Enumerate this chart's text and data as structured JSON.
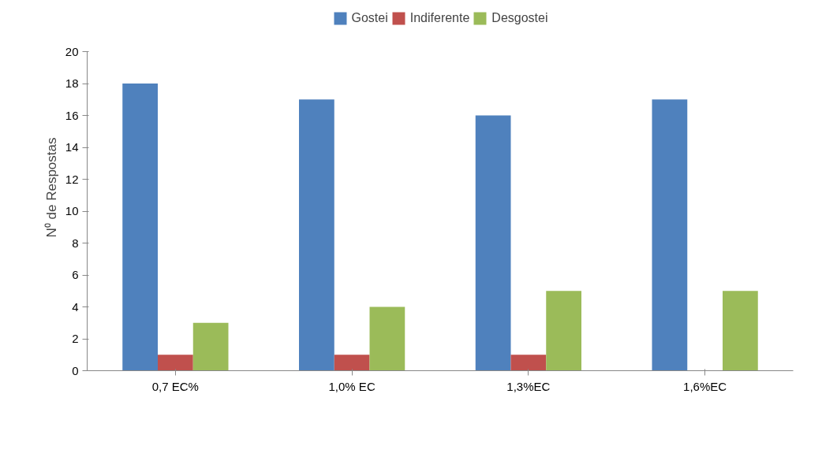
{
  "chart_data": {
    "type": "bar",
    "categories": [
      "0,7 EC%",
      "1,0% EC",
      "1,3%EC",
      "1,6%EC"
    ],
    "ylabel": "N⁰ de Respostas",
    "ylim": [
      0,
      20
    ],
    "yticks": [
      0,
      2,
      4,
      6,
      8,
      10,
      12,
      14,
      16,
      18,
      20
    ],
    "grid": false,
    "legend": "top",
    "series": [
      {
        "name": "Gostei",
        "color": "#4f81bd",
        "values": [
          18,
          17,
          16,
          17
        ]
      },
      {
        "name": "Indiferente",
        "color": "#c0504d",
        "values": [
          1,
          1,
          1,
          0
        ]
      },
      {
        "name": "Desgostei",
        "color": "#9bbb59",
        "values": [
          3,
          4,
          5,
          5
        ]
      }
    ]
  }
}
